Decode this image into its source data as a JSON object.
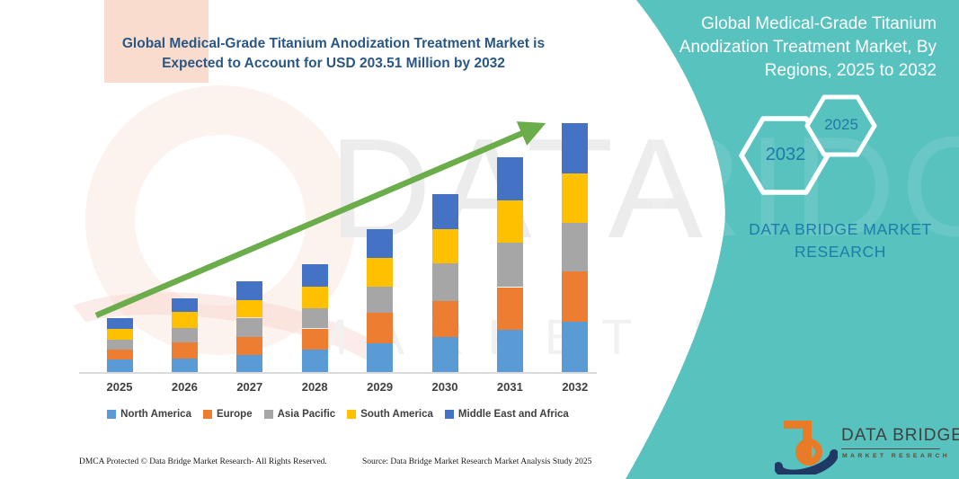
{
  "main_title": {
    "line1": "Global Medical-Grade Titanium Anodization Treatment Market is",
    "line2": "Expected to Account for USD 203.51 Million by 2032"
  },
  "side_panel": {
    "background_color": "#58C2BF",
    "title_line1": "Global Medical-Grade Titanium",
    "title_line2": "Anodization Treatment Market, By",
    "title_line3": "Regions, 2025 to 2032",
    "hexagon_back_label": "2032",
    "hexagon_front_label": "2025",
    "brand_line1": "DATA BRIDGE MARKET",
    "brand_line2": "RESEARCH",
    "brand_color": "#1C7DA8"
  },
  "watermark": {
    "big_text": "DATA BRIDGE",
    "small_text": "MARKET RESEARCH"
  },
  "logo": {
    "name": "DATA BRIDGE",
    "subtitle": "MARKET RESEARCH",
    "orange": "#E87B28",
    "navy": "#1F3864"
  },
  "footer": {
    "dmca": "DMCA Protected © Data Bridge Market Research-  All Rights Reserved.",
    "source": "Source: Data Bridge Market Research  Market Analysis Study 2025"
  },
  "chart_data": {
    "type": "bar",
    "stacked": true,
    "title": "Global Medical-Grade Titanium Anodization Treatment Market is Expected to Account for USD 203.51 Million by 2032",
    "unit": "USD Million",
    "categories": [
      "2025",
      "2026",
      "2027",
      "2028",
      "2029",
      "2030",
      "2031",
      "2032"
    ],
    "series": [
      {
        "name": "North America",
        "color": "#5B9BD5",
        "values": [
          10.0,
          11.3,
          14.2,
          18.4,
          23.3,
          28.9,
          34.8,
          41.2
        ]
      },
      {
        "name": "Europe",
        "color": "#ED7D31",
        "values": [
          8.4,
          12.7,
          14.7,
          17.2,
          25.2,
          29.2,
          34.6,
          40.9
        ]
      },
      {
        "name": "Asia Pacific",
        "color": "#A6A6A6",
        "values": [
          8.1,
          12.3,
          15.5,
          16.7,
          21.3,
          30.7,
          36.1,
          40.0
        ]
      },
      {
        "name": "South America",
        "color": "#FFC000",
        "values": [
          8.5,
          13.0,
          14.5,
          17.7,
          23.8,
          28.2,
          34.9,
          40.5
        ]
      },
      {
        "name": "Middle East and Africa",
        "color": "#4472C4",
        "values": [
          9.3,
          11.0,
          15.5,
          18.2,
          23.5,
          28.7,
          35.0,
          40.9
        ]
      }
    ],
    "totals": [
      44.3,
      60.3,
      74.4,
      88.2,
      117.1,
      145.7,
      175.4,
      203.5
    ],
    "ylim": [
      0,
      210
    ],
    "gridlines": false,
    "legend_position": "bottom",
    "annotations": [
      "upward green trend arrow"
    ],
    "trend_arrow_color": "#6BAD4A"
  }
}
